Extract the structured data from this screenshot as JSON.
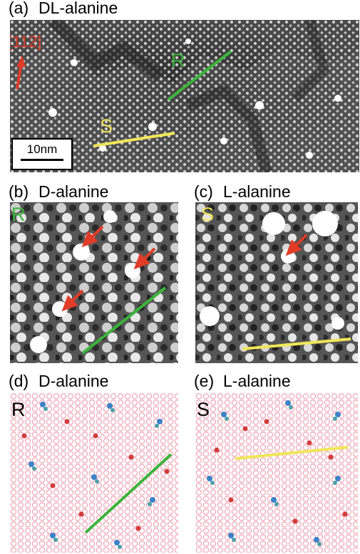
{
  "panels": {
    "a": {
      "label": "(a)",
      "title": "DL-alanine",
      "direction": "[112]",
      "scale": "10nm",
      "tag_r": "R",
      "tag_s": "S"
    },
    "b": {
      "label": "(b)",
      "title": "D-alanine",
      "tag": "R"
    },
    "c": {
      "label": "(c)",
      "title": "L-alanine",
      "tag": "S"
    },
    "d": {
      "label": "(d)",
      "title": "D-alanine",
      "tag": "R"
    },
    "e": {
      "label": "(e)",
      "title": "L-alanine",
      "tag": "S"
    }
  },
  "colors": {
    "green_line": "#3cb43c",
    "yellow_line": "#f0e65a",
    "red_arrow": "#e03c28",
    "lattice": "#f0a5b4"
  }
}
